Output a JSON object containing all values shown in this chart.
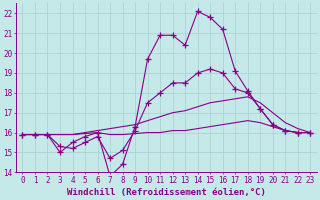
{
  "xlabel": "Windchill (Refroidissement éolien,°C)",
  "background_color": "#c5e8e8",
  "grid_color": "#a8d0d0",
  "line_color": "#880088",
  "x_values": [
    0,
    1,
    2,
    3,
    4,
    5,
    6,
    7,
    8,
    9,
    10,
    11,
    12,
    13,
    14,
    15,
    16,
    17,
    18,
    19,
    20,
    21,
    22,
    23
  ],
  "series1": [
    15.9,
    15.9,
    15.9,
    15.0,
    15.5,
    15.8,
    16.0,
    13.8,
    14.4,
    16.3,
    19.7,
    20.9,
    20.9,
    20.4,
    22.1,
    21.8,
    21.2,
    19.1,
    18.1,
    17.2,
    16.4,
    16.1,
    16.0,
    16.0
  ],
  "series2": [
    15.9,
    15.9,
    15.9,
    15.9,
    15.9,
    16.0,
    16.1,
    16.2,
    16.3,
    16.4,
    16.6,
    16.8,
    17.0,
    17.1,
    17.3,
    17.5,
    17.6,
    17.7,
    17.8,
    17.5,
    17.0,
    16.5,
    16.2,
    16.0
  ],
  "series3": [
    15.9,
    15.9,
    15.9,
    15.3,
    15.2,
    15.5,
    15.8,
    14.7,
    15.1,
    16.1,
    17.5,
    18.0,
    18.5,
    18.5,
    19.0,
    19.2,
    19.0,
    18.2,
    18.0,
    17.2,
    16.4,
    16.1,
    16.0,
    16.0
  ],
  "series4": [
    15.9,
    15.9,
    15.9,
    15.9,
    15.9,
    15.95,
    16.0,
    15.9,
    15.9,
    15.95,
    16.0,
    16.0,
    16.1,
    16.1,
    16.2,
    16.3,
    16.4,
    16.5,
    16.6,
    16.5,
    16.3,
    16.1,
    16.0,
    16.0
  ],
  "ylim": [
    14,
    22.5
  ],
  "xlim": [
    -0.5,
    23.5
  ],
  "yticks": [
    14,
    15,
    16,
    17,
    18,
    19,
    20,
    21,
    22
  ],
  "xticks": [
    0,
    1,
    2,
    3,
    4,
    5,
    6,
    7,
    8,
    9,
    10,
    11,
    12,
    13,
    14,
    15,
    16,
    17,
    18,
    19,
    20,
    21,
    22,
    23
  ],
  "tick_label_fontsize": 5.5,
  "xlabel_fontsize": 6.5
}
